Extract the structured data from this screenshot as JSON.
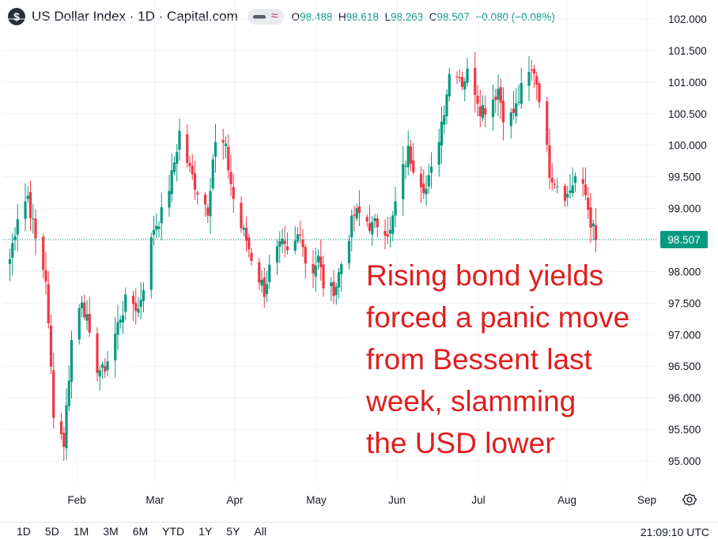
{
  "header": {
    "symbol_letter": "$",
    "title": "US Dollar Index · 1D · Capital.com",
    "wave_glyph": "≈",
    "o_label": "O",
    "o_value": "98.488",
    "h_label": "H",
    "h_value": "98.618",
    "l_label": "L",
    "l_value": "98.263",
    "c_label": "C",
    "c_value": "98.507",
    "change": "−0.080 (−0.08%)"
  },
  "annotation": {
    "line1": "Rising bond yields",
    "line2": "forced a panic move",
    "line3": "from Bessent last",
    "line4": "week, slamming",
    "line5": "the USD lower"
  },
  "ranges": [
    "1D",
    "5D",
    "1M",
    "3M",
    "6M",
    "YTD",
    "1Y",
    "5Y",
    "All"
  ],
  "clock": "21:09:10 UTC",
  "colors": {
    "up": "#089981",
    "down": "#f23645",
    "price_badge": "#089981",
    "annotation": "#e01e1e"
  },
  "chart_data": {
    "type": "candlestick",
    "title": "US Dollar Index · 1D · Capital.com",
    "y_ticks": [
      "102.000",
      "101.500",
      "101.000",
      "100.500",
      "100.000",
      "99.500",
      "99.000",
      "98.500",
      "98.000",
      "97.500",
      "97.000",
      "96.500",
      "96.000",
      "95.500",
      "95.000"
    ],
    "ylim": [
      94.7,
      102.3
    ],
    "x_ticks": [
      "Feb",
      "Mar",
      "Apr",
      "May",
      "Jun",
      "Jul",
      "Aug",
      "Sep"
    ],
    "last_price": "98.507",
    "anchors": [
      [
        "Jan 6",
        98.2
      ],
      [
        "Jan 9",
        98.9
      ],
      [
        "Jan 13",
        99.2
      ],
      [
        "Jan 16",
        98.5
      ],
      [
        "Jan 20",
        97.9
      ],
      [
        "Jan 21",
        97.1
      ],
      [
        "Jan 23",
        95.8
      ],
      [
        "Jan 27",
        95.3
      ],
      [
        "Jan 30",
        96.9
      ],
      [
        "Feb 3",
        97.6
      ],
      [
        "Feb 5",
        97.2
      ],
      [
        "Feb 7",
        96.6
      ],
      [
        "Feb 11",
        96.4
      ],
      [
        "Feb 14",
        96.7
      ],
      [
        "Feb 18",
        97.3
      ],
      [
        "Feb 21",
        97.6
      ],
      [
        "Feb 25",
        97.4
      ],
      [
        "Feb 28",
        98.0
      ],
      [
        "Mar 3",
        98.7
      ],
      [
        "Mar 6",
        98.9
      ],
      [
        "Mar 10",
        99.5
      ],
      [
        "Mar 13",
        100.2
      ],
      [
        "Mar 17",
        99.6
      ],
      [
        "Mar 20",
        99.3
      ],
      [
        "Mar 24",
        99.0
      ],
      [
        "Mar 26",
        99.8
      ],
      [
        "Mar 28",
        100.2
      ],
      [
        "Mar 31",
        99.9
      ],
      [
        "Apr 2",
        99.4
      ],
      [
        "Apr 4",
        98.9
      ],
      [
        "Apr 8",
        98.5
      ],
      [
        "Apr 11",
        98.1
      ],
      [
        "Apr 15",
        97.7
      ],
      [
        "Apr 18",
        98.2
      ],
      [
        "Apr 22",
        98.4
      ],
      [
        "Apr 25",
        98.2
      ],
      [
        "Apr 29",
        98.7
      ],
      [
        "May 2",
        97.9
      ],
      [
        "May 6",
        98.2
      ],
      [
        "May 9",
        97.6
      ],
      [
        "May 13",
        97.8
      ],
      [
        "May 16",
        98.3
      ],
      [
        "May 20",
        98.9
      ],
      [
        "May 23",
        98.9
      ],
      [
        "May 27",
        98.7
      ],
      [
        "May 30",
        98.8
      ],
      [
        "Jun 3",
        98.6
      ],
      [
        "Jun 6",
        99.3
      ],
      [
        "Jun 10",
        99.9
      ],
      [
        "Jun 13",
        99.6
      ],
      [
        "Jun 17",
        99.3
      ],
      [
        "Jun 20",
        99.7
      ],
      [
        "Jun 24",
        100.6
      ],
      [
        "Jun 27",
        101.4
      ],
      [
        "Jul 1",
        101.0
      ],
      [
        "Jul 4",
        101.2
      ],
      [
        "Jul 8",
        100.6
      ],
      [
        "Jul 11",
        100.6
      ],
      [
        "Jul 15",
        100.9
      ],
      [
        "Jul 18",
        100.3
      ],
      [
        "Jul 22",
        100.6
      ],
      [
        "Jul 25",
        101.0
      ],
      [
        "Jul 29",
        101.2
      ],
      [
        "Jul 31",
        100.8
      ],
      [
        "Aug 4",
        99.6
      ],
      [
        "Aug 7",
        99.4
      ],
      [
        "Aug 11",
        99.2
      ],
      [
        "Aug 14",
        99.5
      ],
      [
        "Aug 18",
        99.2
      ],
      [
        "Aug 20",
        98.8
      ],
      [
        "Aug 22",
        98.5
      ]
    ]
  }
}
